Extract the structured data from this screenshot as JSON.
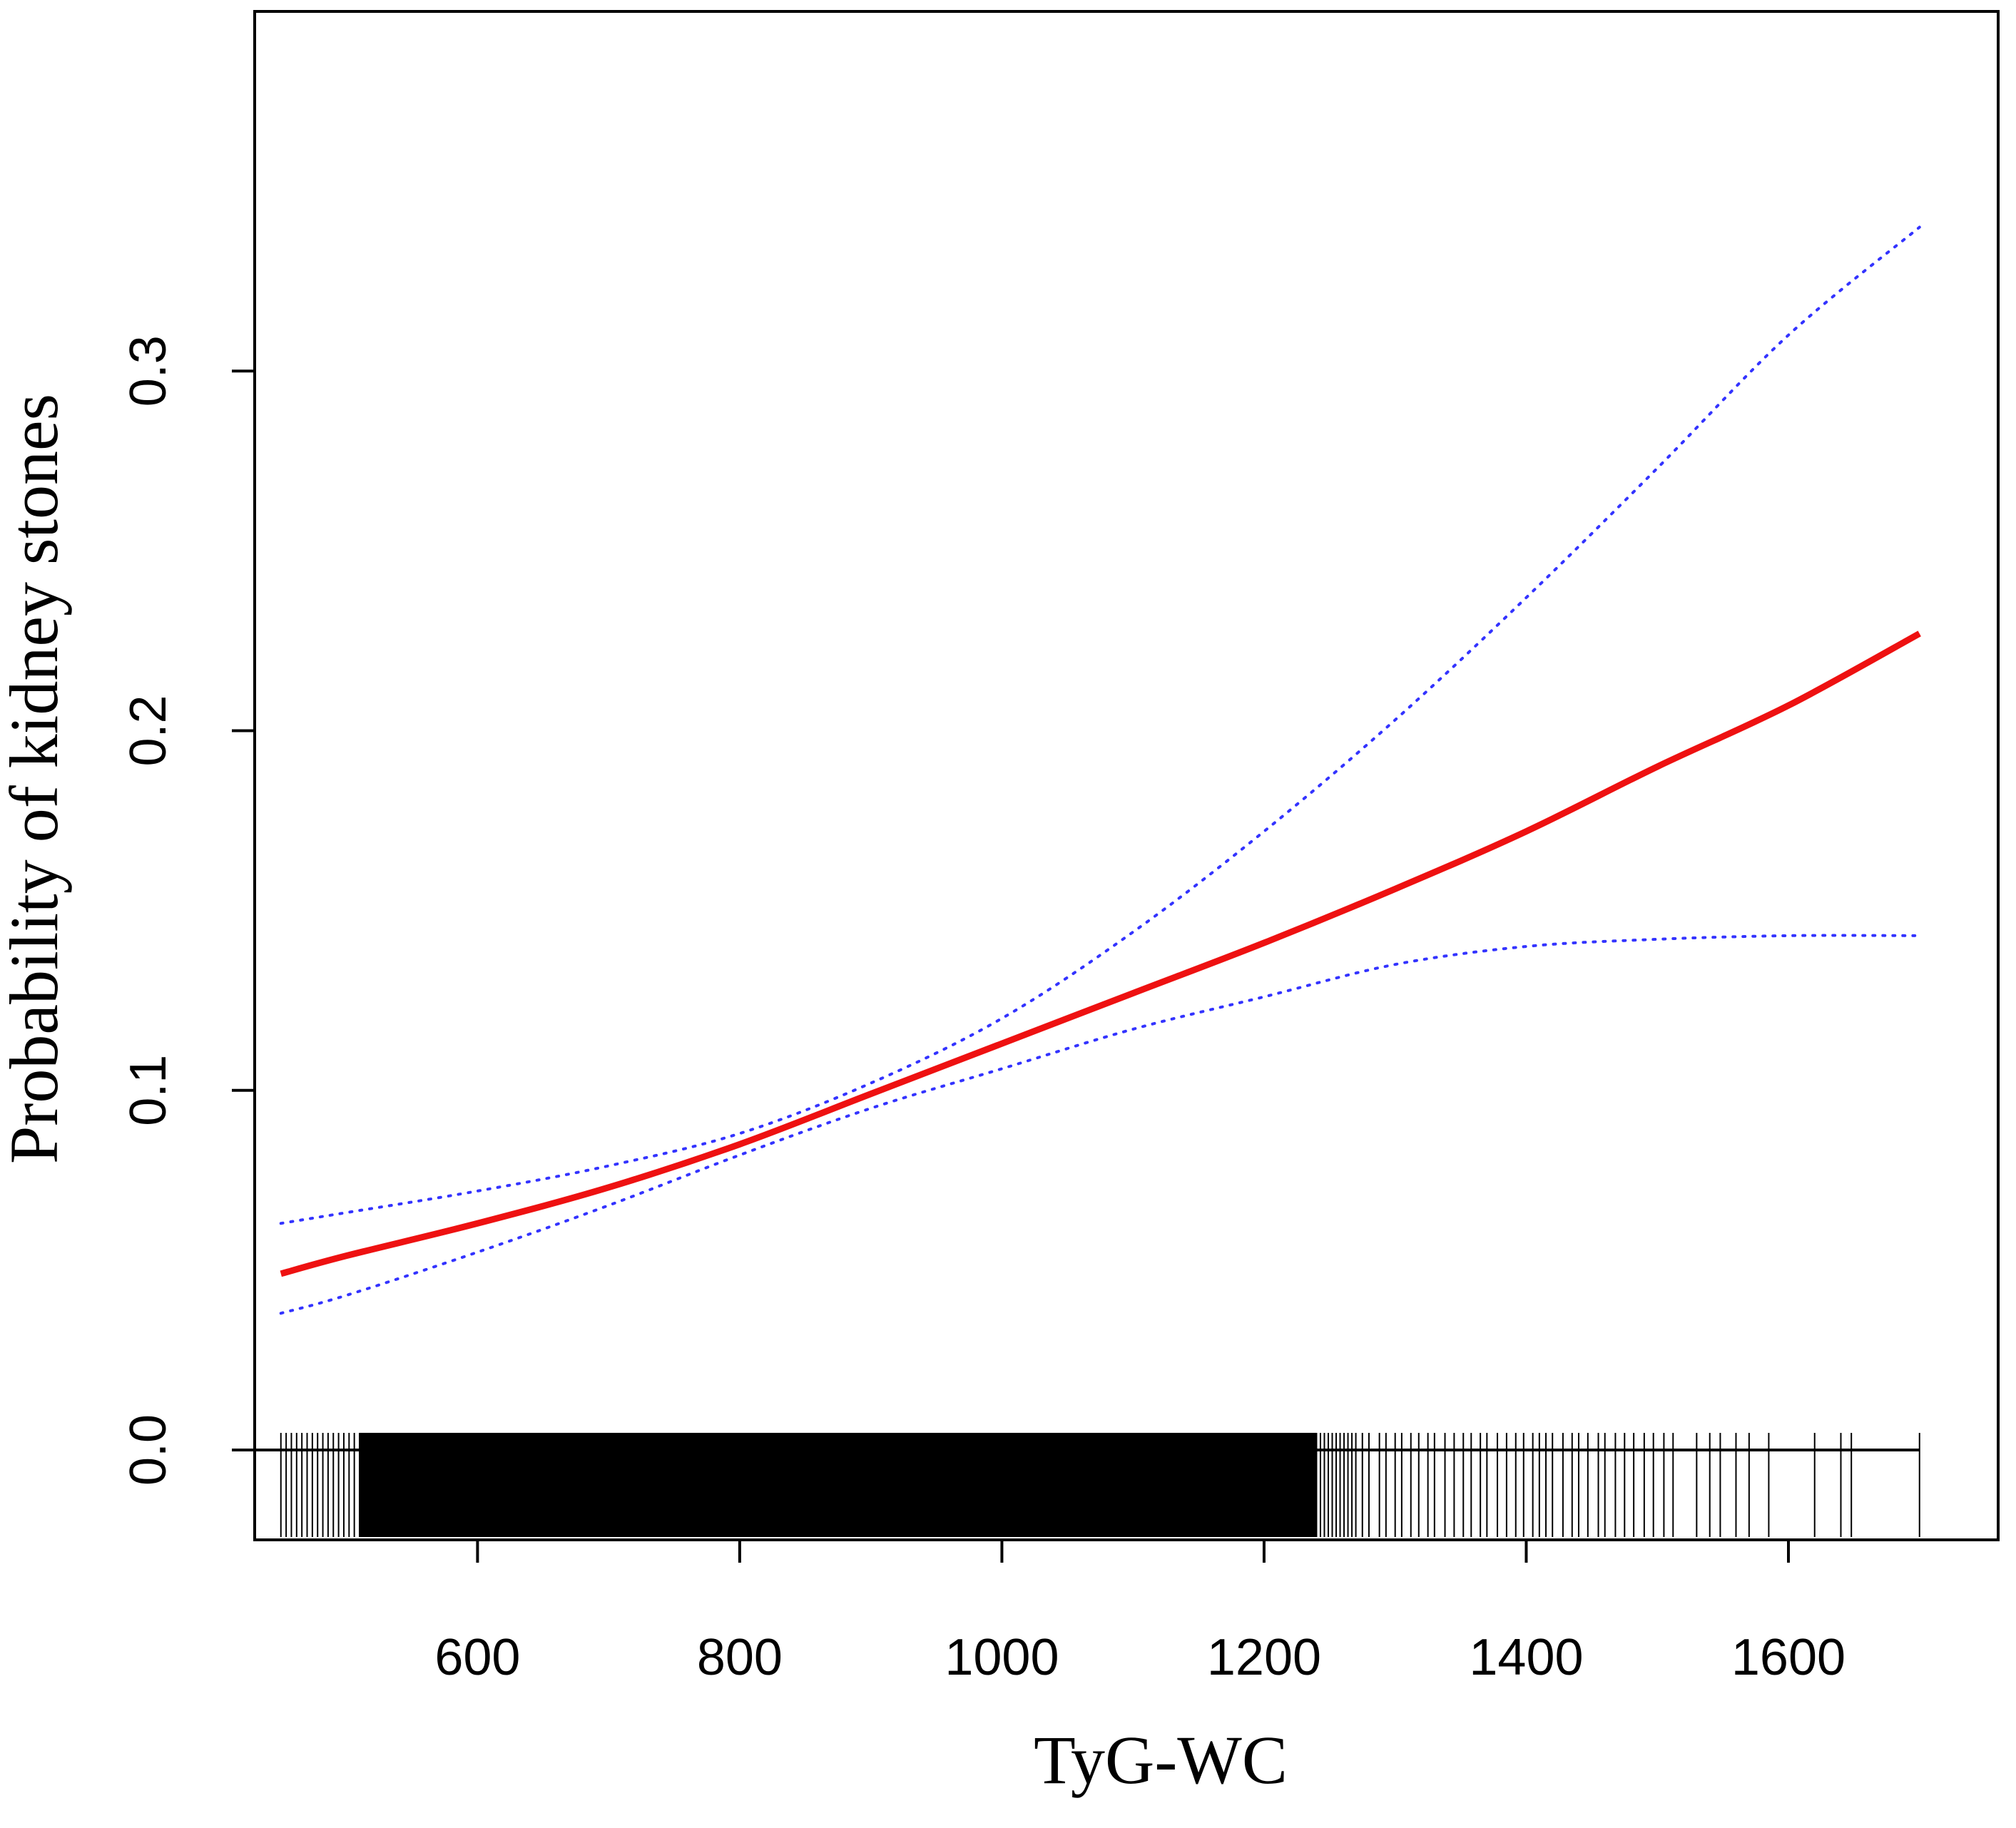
{
  "chart_data": {
    "type": "line",
    "xlabel": "TyG-WC",
    "ylabel": "Probability of kidney stones",
    "xlim": [
      430,
      1760
    ],
    "ylim": [
      -0.025,
      0.4
    ],
    "x_ticks": [
      {
        "value": 600,
        "label": "600"
      },
      {
        "value": 800,
        "label": "800"
      },
      {
        "value": 1000,
        "label": "1000"
      },
      {
        "value": 1200,
        "label": "1200"
      },
      {
        "value": 1400,
        "label": "1400"
      },
      {
        "value": 1600,
        "label": "1600"
      }
    ],
    "y_ticks": [
      {
        "value": 0.0,
        "label": "0.0"
      },
      {
        "value": 0.1,
        "label": "0.1"
      },
      {
        "value": 0.2,
        "label": "0.2"
      },
      {
        "value": 0.3,
        "label": "0.3"
      }
    ],
    "grid": false,
    "series": [
      {
        "style": "solid",
        "color": "#ee1111",
        "x": [
          450,
          500,
          600,
          700,
          800,
          900,
          1000,
          1100,
          1200,
          1300,
          1400,
          1500,
          1600,
          1700
        ],
        "y": [
          0.049,
          0.054,
          0.063,
          0.073,
          0.085,
          0.099,
          0.113,
          0.127,
          0.141,
          0.156,
          0.172,
          0.19,
          0.207,
          0.227
        ]
      },
      {
        "style": "dotted",
        "color": "#3333ff",
        "x": [
          450,
          500,
          600,
          700,
          800,
          900,
          1000,
          1100,
          1200,
          1300,
          1400,
          1500,
          1600,
          1700
        ],
        "y": [
          0.063,
          0.066,
          0.072,
          0.079,
          0.088,
          0.102,
          0.12,
          0.144,
          0.172,
          0.203,
          0.237,
          0.273,
          0.31,
          0.34
        ]
      },
      {
        "style": "dotted",
        "color": "#3333ff",
        "x": [
          450,
          500,
          600,
          700,
          800,
          900,
          1000,
          1100,
          1200,
          1300,
          1400,
          1500,
          1600,
          1700
        ],
        "y": [
          0.038,
          0.043,
          0.055,
          0.068,
          0.082,
          0.095,
          0.106,
          0.117,
          0.126,
          0.135,
          0.14,
          0.142,
          0.143,
          0.143
        ]
      }
    ],
    "rug": {
      "dense_range": [
        450,
        1270
      ],
      "sparse_values": [
        1275,
        1280,
        1288,
        1293,
        1300,
        1305,
        1312,
        1318,
        1325,
        1330,
        1338,
        1345,
        1352,
        1358,
        1365,
        1370,
        1378,
        1385,
        1392,
        1398,
        1405,
        1410,
        1415,
        1420,
        1428,
        1435,
        1440,
        1447,
        1455,
        1460,
        1468,
        1475,
        1482,
        1490,
        1497,
        1505,
        1512,
        1530,
        1540,
        1548,
        1560,
        1570,
        1585,
        1620,
        1640,
        1648,
        1700
      ]
    }
  }
}
